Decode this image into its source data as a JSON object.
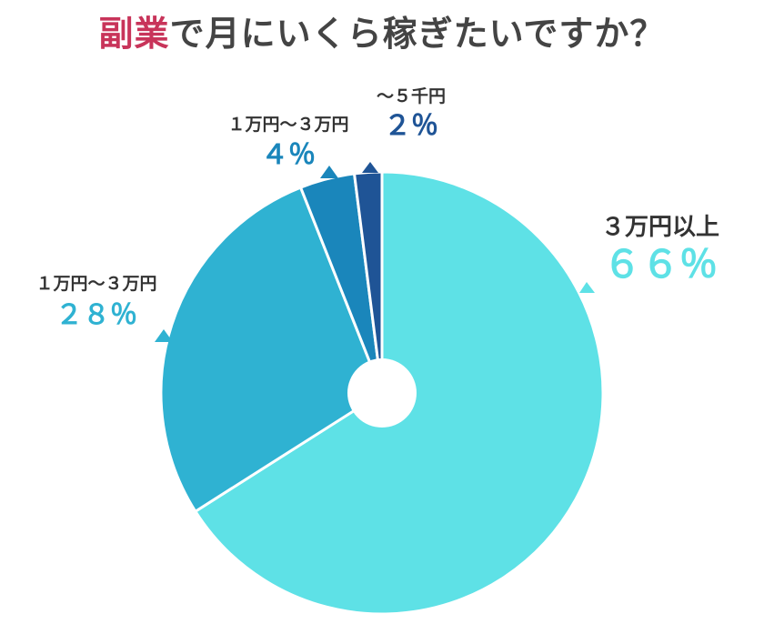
{
  "title": {
    "highlight": "副業",
    "rest": "で月にいくら稼ぎたいですか？"
  },
  "colors": {
    "title_highlight": "#c8345a",
    "title_text": "#444444"
  },
  "chart_data": {
    "type": "pie",
    "donut_hole": true,
    "legend": "none",
    "categories": [
      "3万円以上",
      "1万円～3万円",
      "1万円～3万円",
      "～5千円"
    ],
    "values": [
      66,
      28,
      4,
      2
    ],
    "value_labels": [
      "６６％",
      "２８％",
      "４％",
      "２％"
    ],
    "category_labels": [
      "３万円以上",
      "１万円～３万円",
      "１万円～３万円",
      "～５千円"
    ],
    "colors": [
      "#5ee1e6",
      "#2fb2d2",
      "#1a86bb",
      "#1f5496"
    ],
    "value_label_colors": [
      "#5ee1e6",
      "#2fb2d2",
      "#1a86bb",
      "#1f5496"
    ]
  }
}
